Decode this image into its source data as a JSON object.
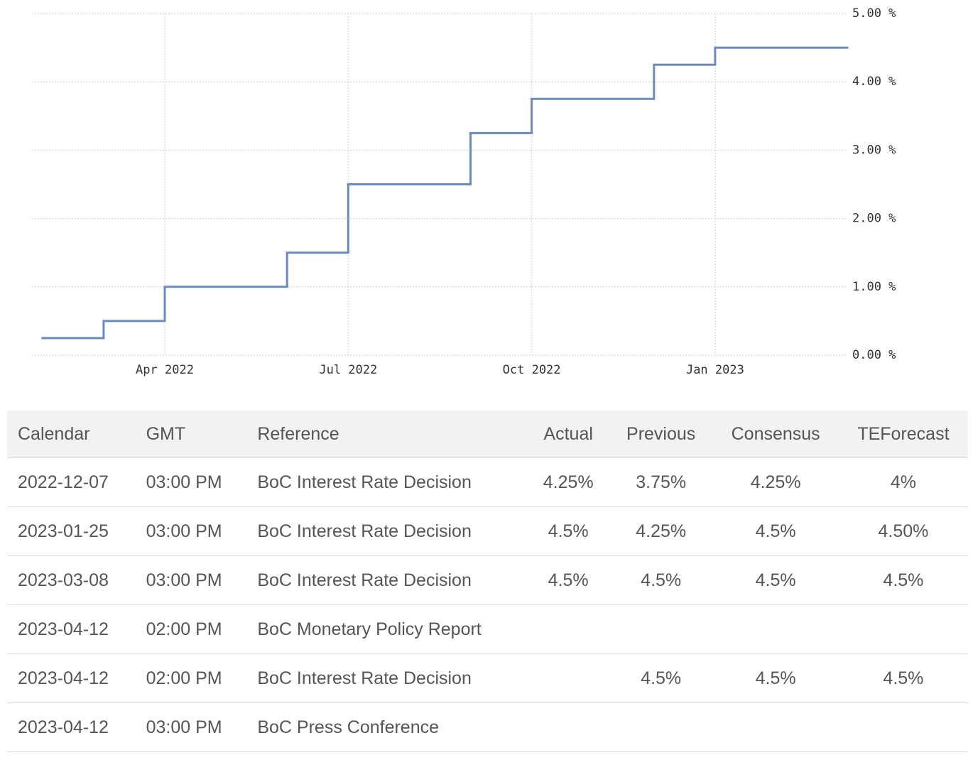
{
  "chart_data": {
    "type": "step",
    "x": [
      "2022-02",
      "2022-03",
      "2022-04",
      "2022-06",
      "2022-07",
      "2022-09",
      "2022-10",
      "2022-12",
      "2023-01"
    ],
    "values": [
      0.25,
      0.5,
      1,
      1.5,
      2.5,
      3.25,
      3.75,
      4.25,
      4.5
    ],
    "color": "#6a8bbf",
    "ylim": [
      0,
      5
    ],
    "yticks": [
      {
        "value": 0,
        "label": "0.00 %"
      },
      {
        "value": 1,
        "label": "1.00 %"
      },
      {
        "value": 2,
        "label": "2.00 %"
      },
      {
        "value": 3,
        "label": "3.00 %"
      },
      {
        "value": 4,
        "label": "4.00 %"
      },
      {
        "value": 5,
        "label": "5.00 %"
      }
    ],
    "xticks": [
      {
        "value": "2022-04",
        "label": "Apr 2022"
      },
      {
        "value": "2022-07",
        "label": "Jul 2022"
      },
      {
        "value": "2022-10",
        "label": "Oct 2022"
      },
      {
        "value": "2023-01",
        "label": "Jan 2023"
      }
    ],
    "grid": true
  },
  "table": {
    "headers": [
      "Calendar",
      "GMT",
      "Reference",
      "Actual",
      "Previous",
      "Consensus",
      "TEForecast"
    ],
    "rows": [
      [
        "2022-12-07",
        "03:00 PM",
        "BoC Interest Rate Decision",
        "4.25%",
        "3.75%",
        "4.25%",
        "4%"
      ],
      [
        "2023-01-25",
        "03:00 PM",
        "BoC Interest Rate Decision",
        "4.5%",
        "4.25%",
        "4.5%",
        "4.50%"
      ],
      [
        "2023-03-08",
        "03:00 PM",
        "BoC Interest Rate Decision",
        "4.5%",
        "4.5%",
        "4.5%",
        "4.5%"
      ],
      [
        "2023-04-12",
        "02:00 PM",
        "BoC Monetary Policy Report",
        null,
        null,
        null,
        null
      ],
      [
        "2023-04-12",
        "02:00 PM",
        "BoC Interest Rate Decision",
        null,
        "4.5%",
        "4.5%",
        "4.5%"
      ],
      [
        "2023-04-12",
        "03:00 PM",
        "BoC Press Conference",
        null,
        null,
        null,
        null
      ]
    ]
  }
}
